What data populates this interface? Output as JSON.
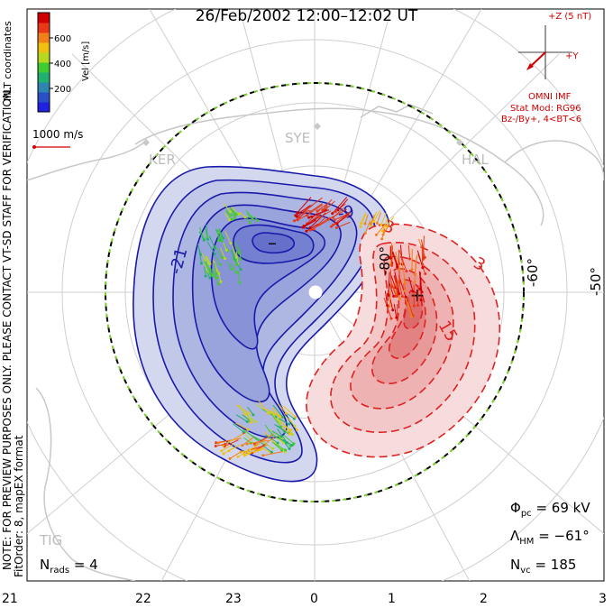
{
  "title": "26/Feb/2002 12:00–12:02 UT",
  "color_scale": {
    "label": "Vel [m/s]",
    "ticks": [
      "600",
      "400",
      "200"
    ],
    "colors": [
      "#2020e0",
      "#2a50c8",
      "#2e86b0",
      "#20b070",
      "#40cc30",
      "#b8d820",
      "#f0c010",
      "#f08018",
      "#e83818",
      "#d00000"
    ]
  },
  "coordinate_label": "MLT coordinates",
  "reference_vector": "1000 m/s",
  "imf": {
    "scale": "+Z (5 nT)",
    "y_label": "+Y",
    "source": "OMNI IMF",
    "model": "Stat Mod: RG96",
    "condition": "Bz-/By+, 4<BT<6"
  },
  "stations": [
    "KER",
    "SYE",
    "HAL",
    "TIG"
  ],
  "latitude_labels": [
    "-80°",
    "-60°",
    "-50°"
  ],
  "contour_labels": [
    "-21",
    "-9",
    "-3",
    "3",
    "3",
    "15"
  ],
  "potential_markers": [
    "–",
    "+"
  ],
  "side_note": "NOTE: FOR PREVIEW PURPOSES ONLY. PLEASE CONTACT VT-SD STAFF FOR VERIFICATION.",
  "fit_order": "FitOrder: 8, mapEX format",
  "stats": {
    "phi_pc_symbol": "Φ",
    "phi_pc_sub": "pc",
    "phi_pc": "= 69 kV",
    "lambda_hm_symbol": "Λ",
    "lambda_hm_sub": "HM",
    "lambda_hm": "= −61°",
    "n_vc_symbol": "N",
    "n_vc_sub": "vc",
    "n_vc": "= 185",
    "n_rads_symbol": "N",
    "n_rads_sub": "rads",
    "n_rads": "= 4"
  },
  "mlt_labels": [
    "21",
    "22",
    "23",
    "0",
    "1",
    "2",
    "3"
  ],
  "colors": {
    "negative_cell": "#1a1aaa",
    "positive_cell": "#dd2222",
    "grid": "#cccccc",
    "annotation": "#d00000"
  }
}
